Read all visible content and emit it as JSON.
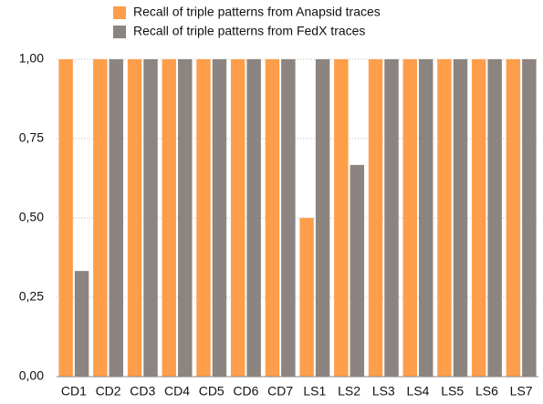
{
  "chart_data": {
    "type": "bar",
    "categories": [
      "CD1",
      "CD2",
      "CD3",
      "CD4",
      "CD5",
      "CD6",
      "CD7",
      "LS1",
      "LS2",
      "LS3",
      "LS4",
      "LS5",
      "LS6",
      "LS7"
    ],
    "series": [
      {
        "name": "Recall of triple patterns from Anapsid traces",
        "color": "#ff9e4a",
        "values": [
          1,
          1,
          1,
          1,
          1,
          1,
          1,
          0.5,
          1,
          1,
          1,
          1,
          1,
          1
        ]
      },
      {
        "name": "Recall of triple patterns from FedX traces",
        "color": "#8c8480",
        "values": [
          0.333,
          1,
          1,
          1,
          1,
          1,
          1,
          1,
          0.667,
          1,
          1,
          1,
          1,
          1
        ]
      }
    ],
    "ylim": [
      0,
      1
    ],
    "yticks": [
      {
        "value": 0,
        "label": "0,00"
      },
      {
        "value": 0.25,
        "label": "0,25"
      },
      {
        "value": 0.5,
        "label": "0,50"
      },
      {
        "value": 0.75,
        "label": "0,75"
      },
      {
        "value": 1,
        "label": "1,00"
      }
    ],
    "grid": true
  }
}
